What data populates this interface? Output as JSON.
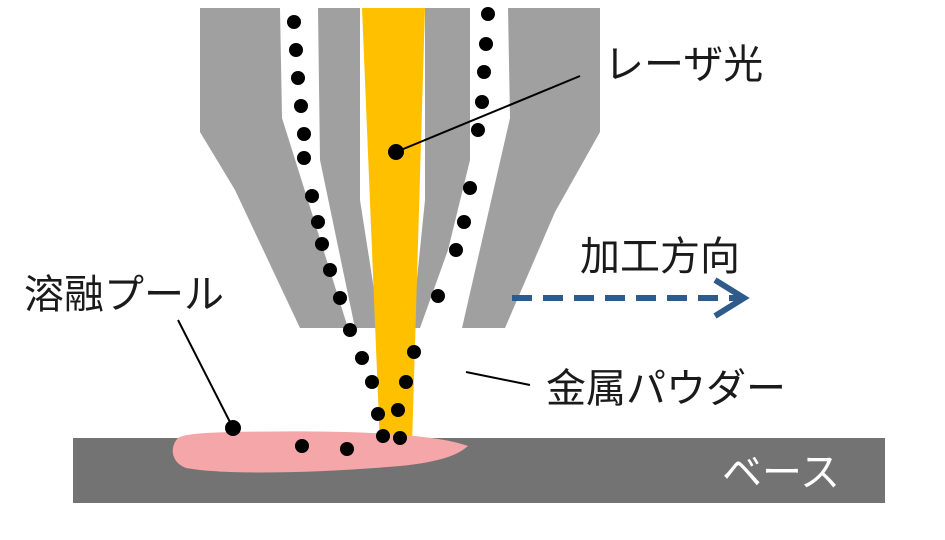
{
  "labels": {
    "laser": "レーザ光",
    "direction": "加工方向",
    "melt_pool": "溶融プール",
    "powder": "金属パウダー",
    "base": "ベース"
  },
  "colors": {
    "nozzle": "#a0a0a0",
    "laser": "#ffc000",
    "melt_pool": "#f4a6a8",
    "base": "#737373",
    "base_label": "#ffffff",
    "particles": "#000000",
    "arrow": "#2f5b8a"
  }
}
